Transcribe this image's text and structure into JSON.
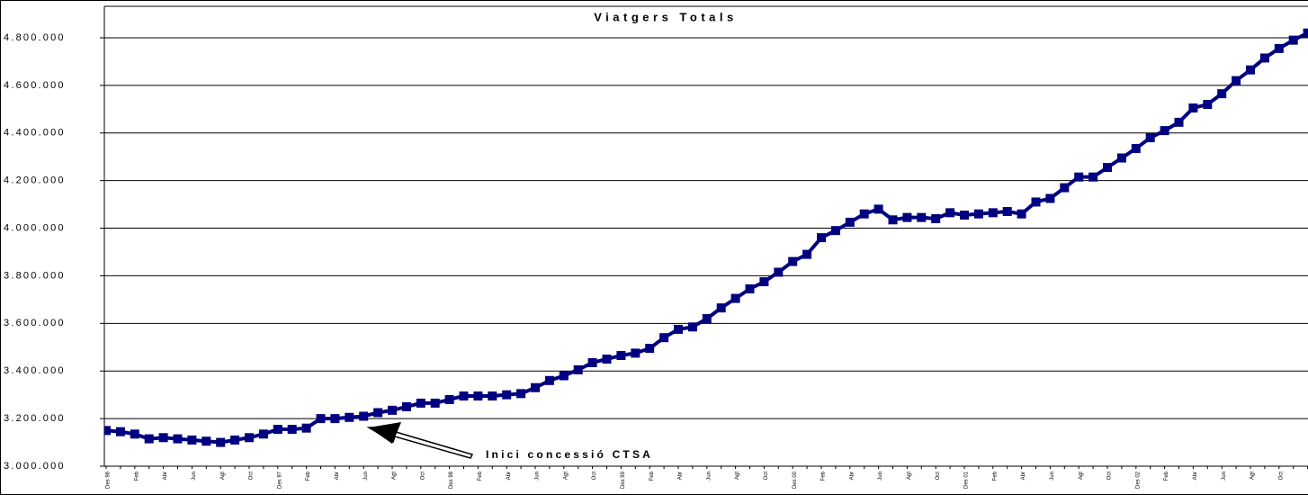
{
  "chart_data": {
    "type": "line",
    "title": "Viatgers Totals",
    "annotation": "Inici concessió CTSA",
    "color": "#000080",
    "categories": [
      "Des 96",
      null,
      "Feb",
      null,
      "Abr",
      null,
      "Jun",
      null,
      "Agt",
      null,
      "Oct",
      null,
      "Des 97",
      null,
      "Feb",
      null,
      "Abr",
      null,
      "Jun",
      null,
      "Agt",
      null,
      "Oct",
      null,
      "Des 98",
      null,
      "Feb",
      null,
      "Abr",
      null,
      "Jun",
      null,
      "Agt",
      null,
      "Oct",
      null,
      "Des 99",
      null,
      "Feb",
      null,
      "Abr",
      null,
      "Jun",
      null,
      "Agt",
      null,
      "Oct",
      null,
      "Des 00",
      null,
      "Feb",
      null,
      "Abr",
      null,
      "Jun",
      null,
      "Agt",
      null,
      "Oct",
      null,
      "Des 01",
      null,
      "Feb",
      null,
      "Abr",
      null,
      "Jun",
      null,
      "Agt",
      null,
      "Oct",
      null,
      "Des 02",
      null,
      "Feb",
      null,
      "Abr",
      null,
      "Jun",
      null,
      "Agt",
      null,
      "Oct",
      null,
      null
    ],
    "values": [
      3150000,
      3145000,
      3135000,
      3115000,
      3120000,
      3115000,
      3110000,
      3105000,
      3100000,
      3110000,
      3120000,
      3135000,
      3155000,
      3155000,
      3160000,
      3200000,
      3200000,
      3205000,
      3210000,
      3225000,
      3235000,
      3250000,
      3265000,
      3265000,
      3280000,
      3295000,
      3295000,
      3295000,
      3300000,
      3305000,
      3330000,
      3360000,
      3380000,
      3405000,
      3435000,
      3450000,
      3465000,
      3475000,
      3495000,
      3540000,
      3575000,
      3585000,
      3620000,
      3665000,
      3705000,
      3745000,
      3775000,
      3815000,
      3860000,
      3890000,
      3960000,
      3990000,
      4025000,
      4060000,
      4080000,
      4035000,
      4045000,
      4045000,
      4040000,
      4065000,
      4055000,
      4060000,
      4065000,
      4070000,
      4060000,
      4110000,
      4125000,
      4170000,
      4215000,
      4215000,
      4255000,
      4295000,
      4335000,
      4380000,
      4410000,
      4445000,
      4505000,
      4520000,
      4565000,
      4620000,
      4665000,
      4715000,
      4755000,
      4790000,
      4820000
    ],
    "ylim": [
      3000000,
      4930000
    ],
    "yticks": [
      {
        "value": 3000000,
        "label": "3.000.000"
      },
      {
        "value": 3200000,
        "label": "3.200.000"
      },
      {
        "value": 3400000,
        "label": "3.400.000"
      },
      {
        "value": 3600000,
        "label": "3.600.000"
      },
      {
        "value": 3800000,
        "label": "3.800.000"
      },
      {
        "value": 4000000,
        "label": "4.000.000"
      },
      {
        "value": 4200000,
        "label": "4.200.000"
      },
      {
        "value": 4400000,
        "label": "4.400.000"
      },
      {
        "value": 4600000,
        "label": "4.600.000"
      },
      {
        "value": 4800000,
        "label": "4.800.000"
      }
    ],
    "grid": true
  }
}
